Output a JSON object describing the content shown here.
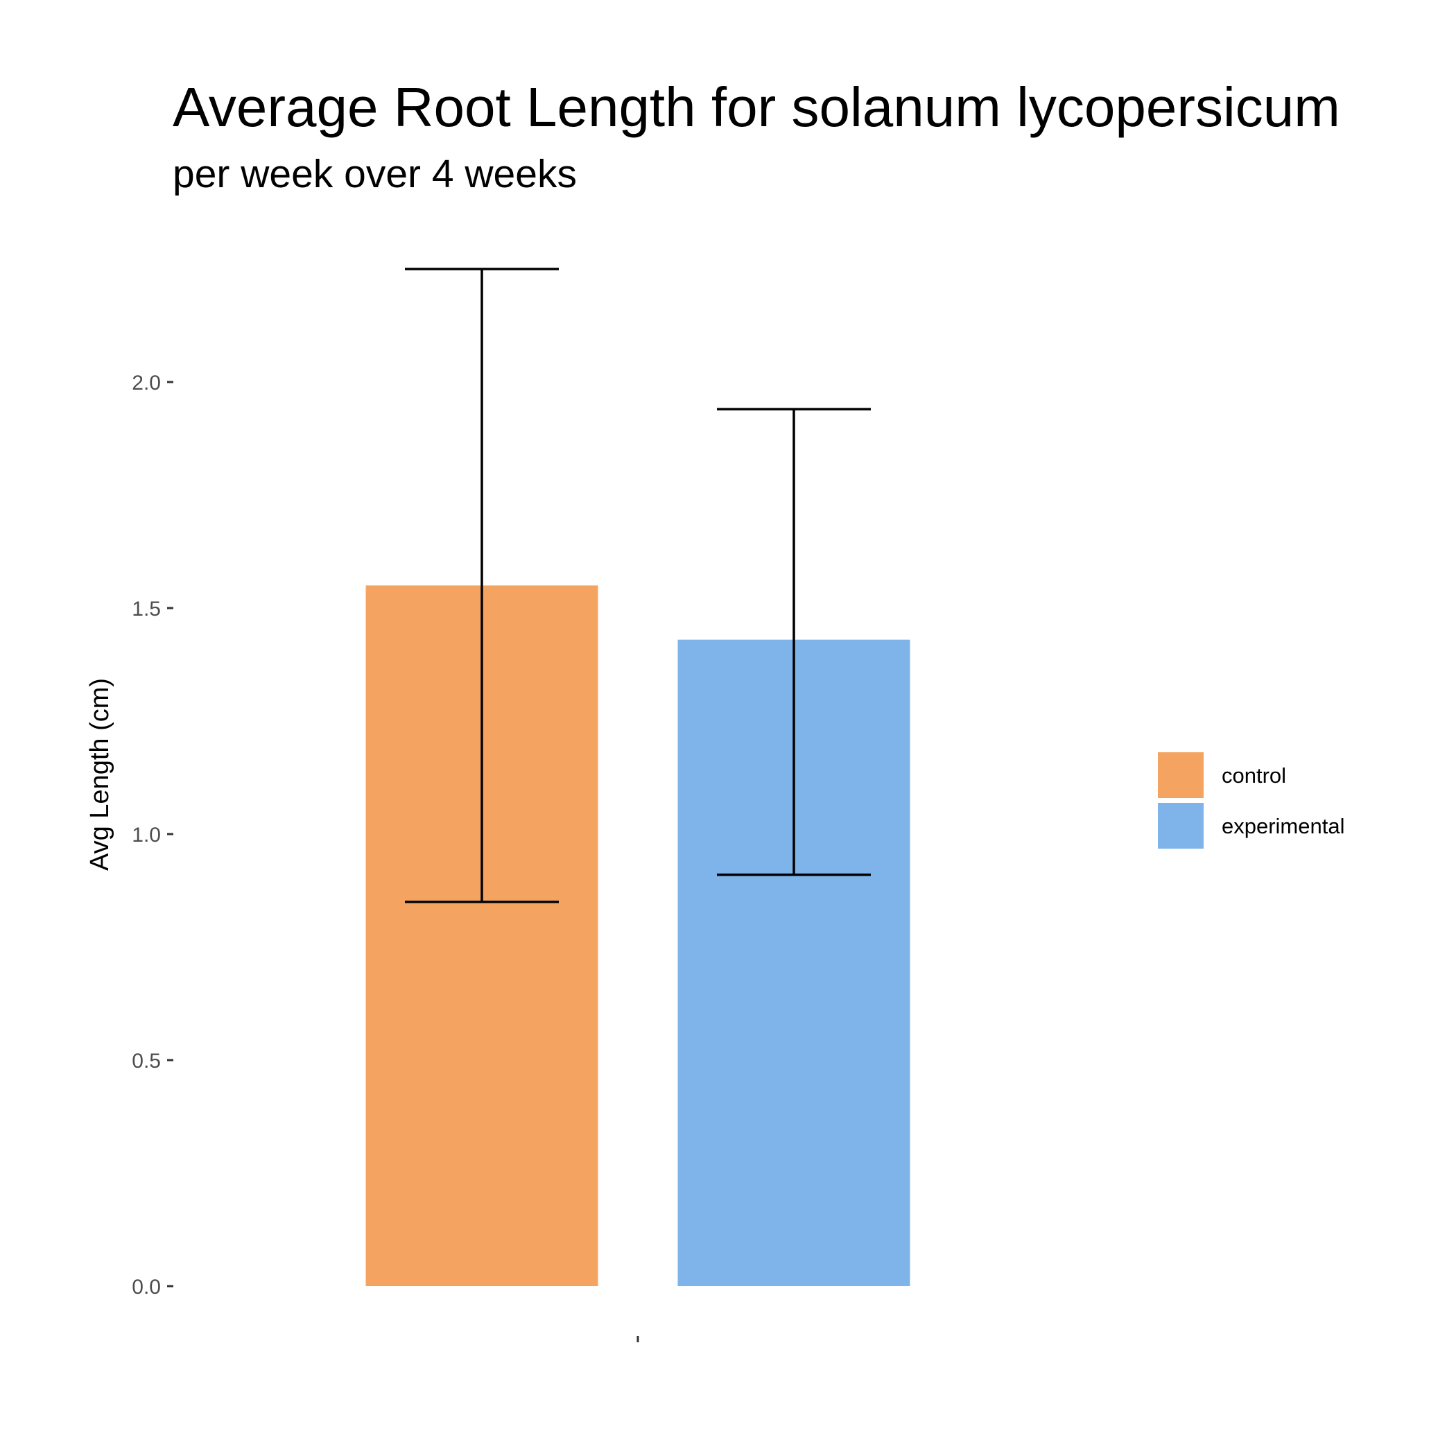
{
  "chart_data": {
    "type": "bar",
    "title": "Average Root Length for solanum lycopersicum",
    "subtitle": "per week over 4 weeks",
    "xlabel": "",
    "ylabel": "Avg Length (cm)",
    "ylim": [
      0,
      2.4
    ],
    "yticks": [
      0.0,
      0.5,
      1.0,
      1.5,
      2.0
    ],
    "ytick_labels": [
      "0.0",
      "0.5",
      "1.0",
      "1.5",
      "2.0"
    ],
    "categories": [
      ""
    ],
    "series": [
      {
        "name": "control",
        "values": [
          1.55
        ],
        "error_low": [
          0.85
        ],
        "error_high": [
          2.25
        ],
        "color": "#f4a460"
      },
      {
        "name": "experimental",
        "values": [
          1.43
        ],
        "error_low": [
          0.91
        ],
        "error_high": [
          1.94
        ],
        "color": "#7eb4ea"
      }
    ],
    "grid": false,
    "legend_position": "right"
  }
}
